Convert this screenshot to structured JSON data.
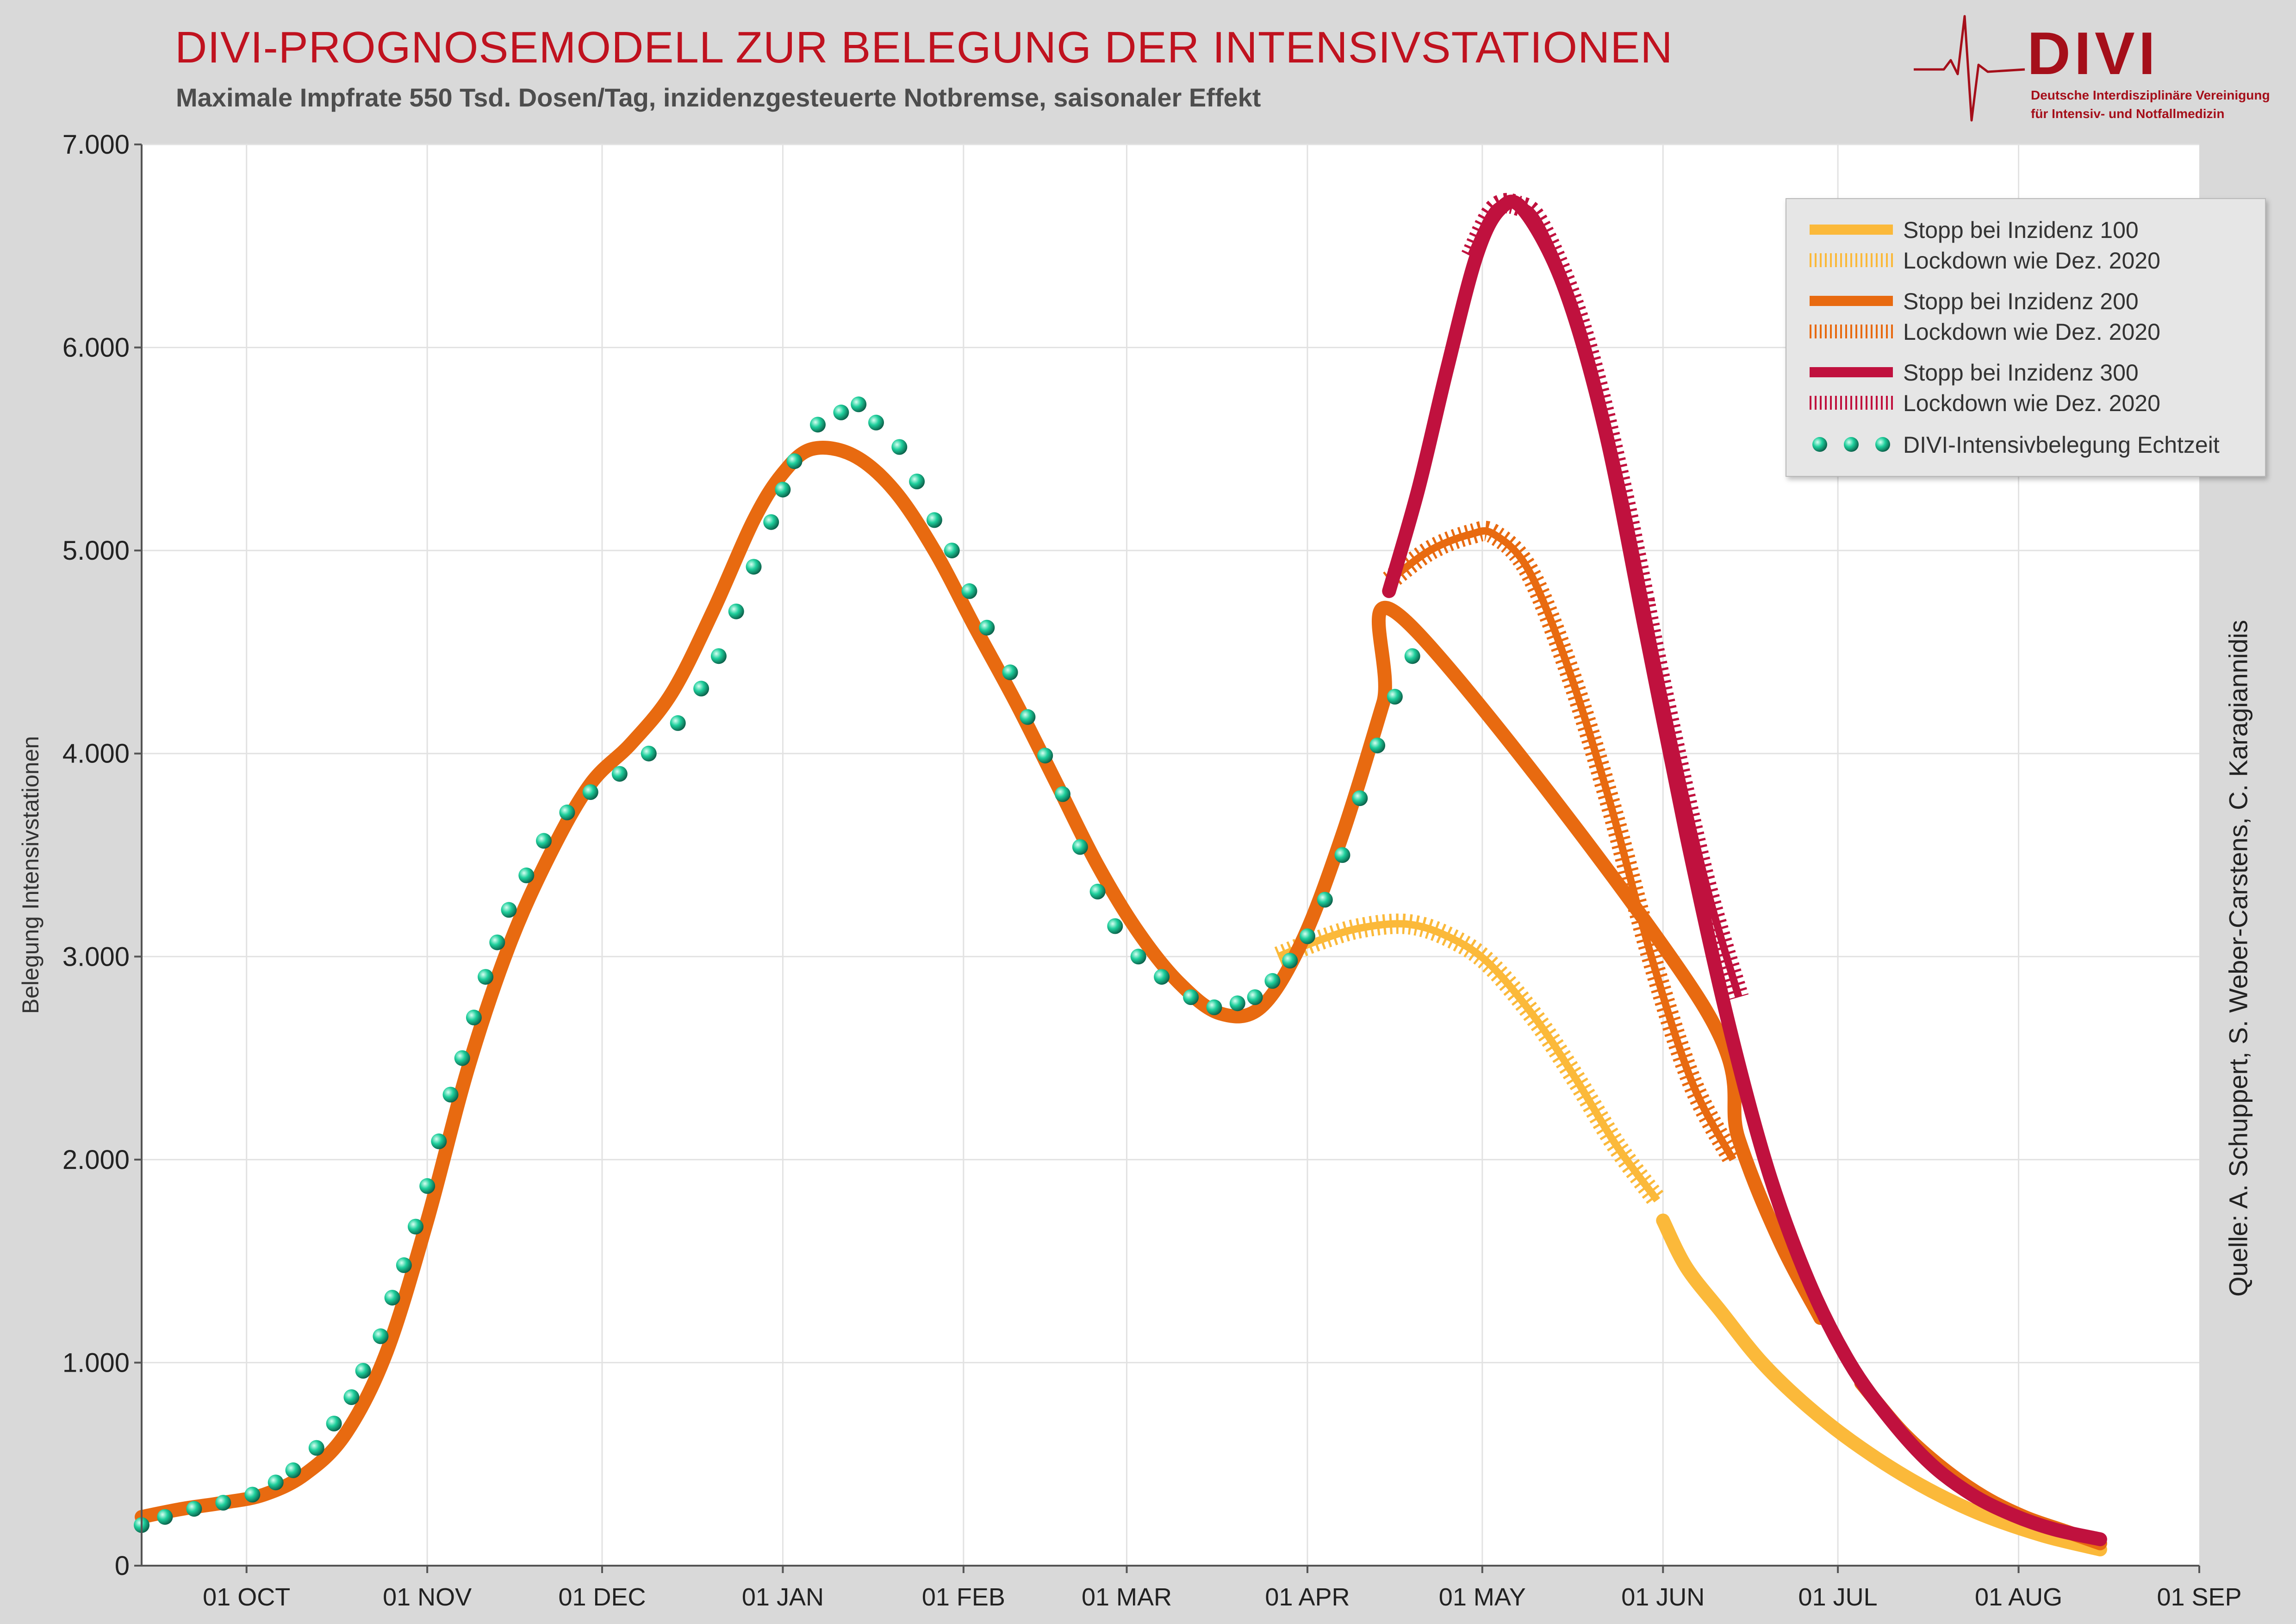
{
  "header": {
    "title": "DIVI-PROGNOSEMODELL ZUR BELEGUNG DER INTENSIVSTATIONEN",
    "subtitle": "Maximale Impfrate 550 Tsd. Dosen/Tag, inzidenzgesteuerte Notbremse, saisonaler Effekt"
  },
  "logo": {
    "word": "DIVI",
    "line1": "Deutsche Interdisziplinäre Vereinigung",
    "line2": "für Intensiv- und Notfallmedizin"
  },
  "source": "Quelle: A. Schuppert, S. Weber-Carstens, C. Karagiannidis",
  "chart_data": {
    "type": "line",
    "ylabel": "Belegung Intensivstationen",
    "xlabel": "",
    "x_type": "date",
    "ylim": [
      0,
      7000
    ],
    "xlim": [
      "2020-09-13",
      "2021-09-01"
    ],
    "grid": true,
    "legend_position": "top-right",
    "yticks": [
      0,
      1000,
      2000,
      3000,
      4000,
      5000,
      6000,
      7000
    ],
    "ytick_labels": [
      "0",
      "1.000",
      "2.000",
      "3.000",
      "4.000",
      "5.000",
      "6.000",
      "7.000"
    ],
    "xticks": [
      "2020-10-01",
      "2020-11-01",
      "2020-12-01",
      "2021-01-01",
      "2021-02-01",
      "2021-03-01",
      "2021-04-01",
      "2021-05-01",
      "2021-06-01",
      "2021-07-01",
      "2021-08-01",
      "2021-09-01"
    ],
    "xtick_labels": [
      "01 OCT",
      "01 NOV",
      "01 DEC",
      "01 JAN",
      "01 FEB",
      "01 MAR",
      "01 APR",
      "01 MAY",
      "01 JUN",
      "01 JUL",
      "01 AUG",
      "01 SEP"
    ],
    "colors": {
      "inz100": "#fbb93a",
      "inz200": "#e86a10",
      "inz300": "#c0113e",
      "dots": "#1ecf9c"
    },
    "series": [
      {
        "name": "DIVI-Intensivbelegung Echtzeit",
        "style": "dots",
        "color": "#1ecf9c",
        "points": [
          [
            "2020-09-13",
            200
          ],
          [
            "2020-09-17",
            240
          ],
          [
            "2020-09-22",
            280
          ],
          [
            "2020-09-27",
            310
          ],
          [
            "2020-10-02",
            350
          ],
          [
            "2020-10-06",
            410
          ],
          [
            "2020-10-09",
            470
          ],
          [
            "2020-10-13",
            580
          ],
          [
            "2020-10-16",
            700
          ],
          [
            "2020-10-19",
            830
          ],
          [
            "2020-10-21",
            960
          ],
          [
            "2020-10-24",
            1130
          ],
          [
            "2020-10-26",
            1320
          ],
          [
            "2020-10-28",
            1480
          ],
          [
            "2020-10-30",
            1670
          ],
          [
            "2020-11-01",
            1870
          ],
          [
            "2020-11-03",
            2090
          ],
          [
            "2020-11-05",
            2320
          ],
          [
            "2020-11-07",
            2500
          ],
          [
            "2020-11-09",
            2700
          ],
          [
            "2020-11-11",
            2900
          ],
          [
            "2020-11-13",
            3070
          ],
          [
            "2020-11-15",
            3230
          ],
          [
            "2020-11-18",
            3400
          ],
          [
            "2020-11-21",
            3570
          ],
          [
            "2020-11-25",
            3710
          ],
          [
            "2020-11-29",
            3810
          ],
          [
            "2020-12-04",
            3900
          ],
          [
            "2020-12-09",
            4000
          ],
          [
            "2020-12-14",
            4150
          ],
          [
            "2020-12-18",
            4320
          ],
          [
            "2020-12-21",
            4480
          ],
          [
            "2020-12-24",
            4700
          ],
          [
            "2020-12-27",
            4920
          ],
          [
            "2020-12-30",
            5140
          ],
          [
            "2021-01-01",
            5300
          ],
          [
            "2021-01-03",
            5440
          ],
          [
            "2021-01-07",
            5620
          ],
          [
            "2021-01-11",
            5680
          ],
          [
            "2021-01-14",
            5720
          ],
          [
            "2021-01-17",
            5630
          ],
          [
            "2021-01-21",
            5510
          ],
          [
            "2021-01-24",
            5340
          ],
          [
            "2021-01-27",
            5150
          ],
          [
            "2021-01-30",
            5000
          ],
          [
            "2021-02-02",
            4800
          ],
          [
            "2021-02-05",
            4620
          ],
          [
            "2021-02-09",
            4400
          ],
          [
            "2021-02-12",
            4180
          ],
          [
            "2021-02-15",
            3990
          ],
          [
            "2021-02-18",
            3800
          ],
          [
            "2021-02-21",
            3540
          ],
          [
            "2021-02-24",
            3320
          ],
          [
            "2021-02-27",
            3150
          ],
          [
            "2021-03-03",
            3000
          ],
          [
            "2021-03-07",
            2900
          ],
          [
            "2021-03-12",
            2800
          ],
          [
            "2021-03-16",
            2750
          ],
          [
            "2021-03-20",
            2770
          ],
          [
            "2021-03-23",
            2800
          ],
          [
            "2021-03-26",
            2880
          ],
          [
            "2021-03-29",
            2980
          ],
          [
            "2021-04-01",
            3100
          ],
          [
            "2021-04-04",
            3280
          ],
          [
            "2021-04-07",
            3500
          ],
          [
            "2021-04-10",
            3780
          ],
          [
            "2021-04-13",
            4040
          ],
          [
            "2021-04-16",
            4280
          ],
          [
            "2021-04-19",
            4480
          ]
        ]
      },
      {
        "name": "Stopp bei Inzidenz 100",
        "style": "solid",
        "color": "#fbb93a",
        "points": [
          [
            "2021-06-01",
            1700
          ],
          [
            "2021-06-05",
            1470
          ],
          [
            "2021-06-11",
            1250
          ],
          [
            "2021-06-18",
            1000
          ],
          [
            "2021-06-26",
            780
          ],
          [
            "2021-07-05",
            580
          ],
          [
            "2021-07-15",
            400
          ],
          [
            "2021-07-25",
            260
          ],
          [
            "2021-08-05",
            150
          ],
          [
            "2021-08-15",
            80
          ]
        ]
      },
      {
        "name": "Lockdown wie Dez. 2020",
        "style": "hatched",
        "color": "#fbb93a",
        "points": [
          [
            "2021-03-27",
            3000
          ],
          [
            "2021-04-03",
            3080
          ],
          [
            "2021-04-10",
            3140
          ],
          [
            "2021-04-18",
            3160
          ],
          [
            "2021-04-25",
            3100
          ],
          [
            "2021-05-02",
            2970
          ],
          [
            "2021-05-10",
            2700
          ],
          [
            "2021-05-17",
            2400
          ],
          [
            "2021-05-24",
            2070
          ],
          [
            "2021-05-31",
            1800
          ]
        ]
      },
      {
        "name": "Stopp bei Inzidenz 200",
        "style": "solid",
        "color": "#e86a10",
        "points": [
          [
            "2020-09-13",
            240
          ],
          [
            "2020-09-20",
            280
          ],
          [
            "2020-09-27",
            310
          ],
          [
            "2020-10-04",
            350
          ],
          [
            "2020-10-11",
            450
          ],
          [
            "2020-10-18",
            650
          ],
          [
            "2020-10-25",
            1050
          ],
          [
            "2020-11-01",
            1700
          ],
          [
            "2020-11-08",
            2450
          ],
          [
            "2020-11-15",
            3050
          ],
          [
            "2020-11-22",
            3500
          ],
          [
            "2020-11-29",
            3850
          ],
          [
            "2020-12-06",
            4050
          ],
          [
            "2020-12-13",
            4300
          ],
          [
            "2020-12-20",
            4700
          ],
          [
            "2020-12-27",
            5150
          ],
          [
            "2021-01-01",
            5380
          ],
          [
            "2021-01-06",
            5500
          ],
          [
            "2021-01-13",
            5470
          ],
          [
            "2021-01-20",
            5300
          ],
          [
            "2021-01-27",
            5000
          ],
          [
            "2021-02-03",
            4620
          ],
          [
            "2021-02-10",
            4250
          ],
          [
            "2021-02-17",
            3850
          ],
          [
            "2021-02-24",
            3450
          ],
          [
            "2021-03-03",
            3120
          ],
          [
            "2021-03-10",
            2870
          ],
          [
            "2021-03-17",
            2720
          ],
          [
            "2021-03-24",
            2750
          ],
          [
            "2021-03-31",
            3070
          ],
          [
            "2021-04-07",
            3600
          ],
          [
            "2021-04-14",
            4250
          ],
          [
            "2021-04-18",
            4650
          ],
          [
            "2021-06-07",
            2800
          ],
          [
            "2021-06-14",
            2100
          ],
          [
            "2021-06-21",
            1600
          ],
          [
            "2021-06-28",
            1220
          ],
          [
            "2021-07-05",
            900
          ],
          [
            "2021-07-12",
            660
          ],
          [
            "2021-07-19",
            480
          ],
          [
            "2021-07-26",
            340
          ],
          [
            "2021-08-02",
            240
          ],
          [
            "2021-08-09",
            170
          ],
          [
            "2021-08-15",
            110
          ]
        ]
      },
      {
        "name": "Lockdown wie Dez. 2020",
        "style": "hatched",
        "color": "#e86a10",
        "points": [
          [
            "2021-04-15",
            4850
          ],
          [
            "2021-04-22",
            5000
          ],
          [
            "2021-04-29",
            5080
          ],
          [
            "2021-05-03",
            5080
          ],
          [
            "2021-05-09",
            4900
          ],
          [
            "2021-05-16",
            4400
          ],
          [
            "2021-05-23",
            3750
          ],
          [
            "2021-05-30",
            3000
          ],
          [
            "2021-06-06",
            2380
          ],
          [
            "2021-06-13",
            2000
          ]
        ]
      },
      {
        "name": "Stopp bei Inzidenz 300",
        "style": "solid",
        "color": "#c0113e",
        "points": [
          [
            "2021-04-15",
            4800
          ],
          [
            "2021-04-20",
            5300
          ],
          [
            "2021-04-25",
            5900
          ],
          [
            "2021-04-30",
            6450
          ],
          [
            "2021-05-04",
            6680
          ],
          [
            "2021-05-08",
            6680
          ],
          [
            "2021-05-15",
            6300
          ],
          [
            "2021-05-22",
            5600
          ],
          [
            "2021-05-29",
            4600
          ],
          [
            "2021-06-05",
            3600
          ],
          [
            "2021-06-12",
            2700
          ],
          [
            "2021-06-19",
            1950
          ],
          [
            "2021-06-26",
            1400
          ],
          [
            "2021-07-03",
            1000
          ],
          [
            "2021-07-10",
            720
          ],
          [
            "2021-07-17",
            500
          ],
          [
            "2021-07-24",
            350
          ],
          [
            "2021-07-31",
            250
          ],
          [
            "2021-08-07",
            180
          ],
          [
            "2021-08-15",
            130
          ]
        ]
      },
      {
        "name": "Lockdown wie Dez. 2020",
        "style": "hatched",
        "color": "#c0113e",
        "points": [
          [
            "2021-04-29",
            6450
          ],
          [
            "2021-05-03",
            6680
          ],
          [
            "2021-05-07",
            6700
          ],
          [
            "2021-05-11",
            6600
          ],
          [
            "2021-05-18",
            6100
          ],
          [
            "2021-05-25",
            5300
          ],
          [
            "2021-06-01",
            4300
          ],
          [
            "2021-06-08",
            3400
          ],
          [
            "2021-06-14",
            2800
          ]
        ]
      }
    ]
  },
  "legend": [
    {
      "label": "Stopp bei Inzidenz 100",
      "color": "#fbb93a",
      "style": "solid"
    },
    {
      "label": "Lockdown wie Dez. 2020",
      "color": "#fbb93a",
      "style": "hatched"
    },
    {
      "label": "Stopp bei Inzidenz 200",
      "color": "#e86a10",
      "style": "solid"
    },
    {
      "label": "Lockdown wie Dez. 2020",
      "color": "#e86a10",
      "style": "hatched"
    },
    {
      "label": "Stopp bei Inzidenz 300",
      "color": "#c0113e",
      "style": "solid"
    },
    {
      "label": "Lockdown wie Dez. 2020",
      "color": "#c0113e",
      "style": "hatched"
    },
    {
      "label": "DIVI-Intensivbelegung Echtzeit",
      "color": "#1ecf9c",
      "style": "dots"
    }
  ]
}
